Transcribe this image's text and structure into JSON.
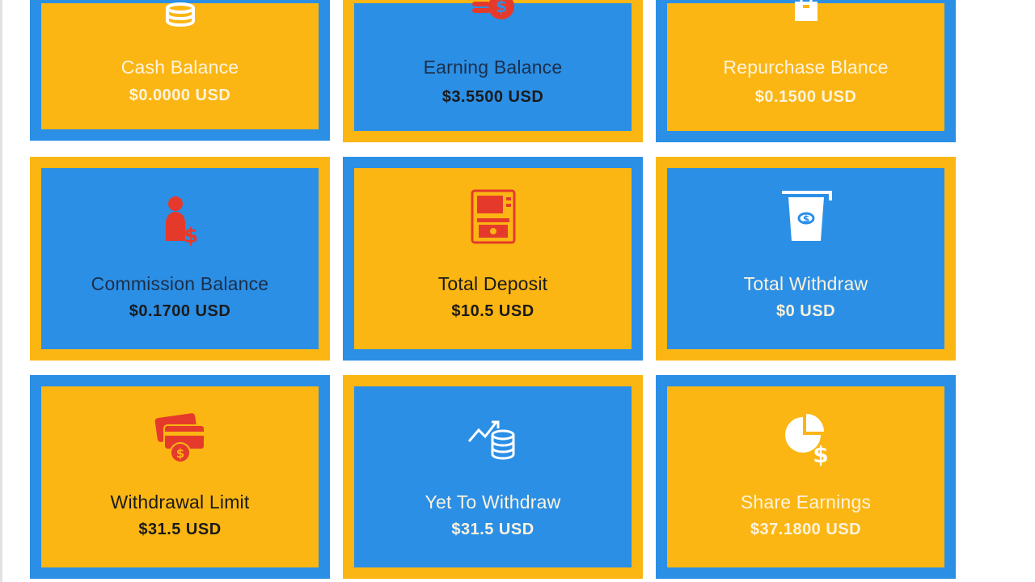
{
  "colors": {
    "blue": "#2b8fe6",
    "yellow": "#fbb613",
    "red_icon": "#e53a2b",
    "white_icon": "#ffffff"
  },
  "cards": [
    {
      "label": "Cash Balance",
      "amount": "$0.0000 USD",
      "icon": "coins-stack-icon"
    },
    {
      "label": "Earning Balance",
      "amount": "$3.5500 USD",
      "icon": "coin-dollar-icon"
    },
    {
      "label": "Repurchase Blance",
      "amount": "$0.1500 USD",
      "icon": "bag-icon"
    },
    {
      "label": "Commission Balance",
      "amount": "$0.1700 USD",
      "icon": "person-dollar-icon"
    },
    {
      "label": "Total Deposit",
      "amount": "$10.5 USD",
      "icon": "atm-icon"
    },
    {
      "label": "Total Withdraw",
      "amount": "$0 USD",
      "icon": "cash-withdraw-icon"
    },
    {
      "label": "Withdrawal Limit",
      "amount": "$31.5 USD",
      "icon": "cards-dollar-icon"
    },
    {
      "label": "Yet To Withdraw",
      "amount": "$31.5 USD",
      "icon": "growth-coins-icon"
    },
    {
      "label": "Share Earnings",
      "amount": "$37.1800 USD",
      "icon": "pie-dollar-icon"
    }
  ]
}
